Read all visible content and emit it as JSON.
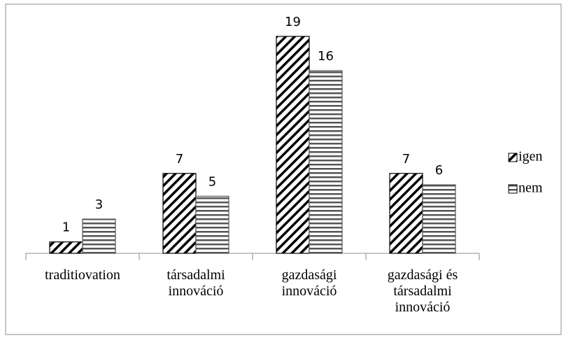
{
  "chart_data": {
    "type": "bar",
    "categories": [
      "traditiovation",
      "társadalmi innováció",
      "gazdasági innováció",
      "gazdasági és társadalmi innováció"
    ],
    "series": [
      {
        "name": "igen",
        "color": "#000000",
        "pattern": "diagonal",
        "values": [
          1,
          7,
          19,
          7
        ]
      },
      {
        "name": "nem",
        "color": "#555555",
        "pattern": "horizontal",
        "values": [
          3,
          5,
          16,
          6
        ]
      }
    ],
    "legend": "right"
  }
}
